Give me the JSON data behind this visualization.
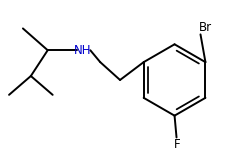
{
  "background_color": "#ffffff",
  "line_color": "#000000",
  "nh_color": "#0000cd",
  "label_color": "#000000",
  "line_width": 1.4,
  "font_size": 8.5,
  "figsize": [
    2.5,
    1.55
  ],
  "dpi": 100,
  "nh_label": {
    "text": "NH"
  },
  "br_label": {
    "text": "Br"
  },
  "f_label": {
    "text": "F"
  }
}
